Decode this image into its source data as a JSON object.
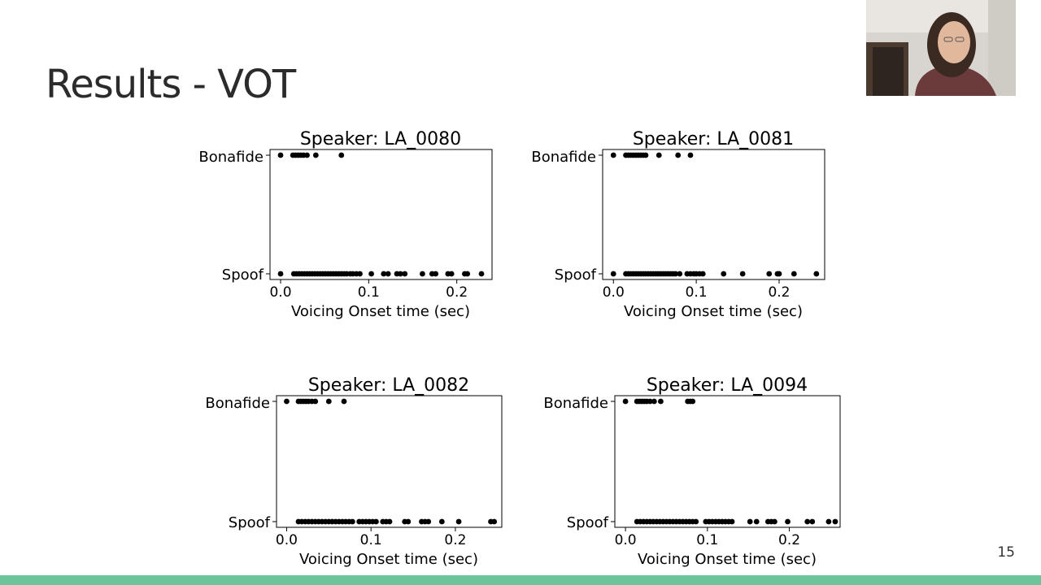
{
  "slide": {
    "title": "Results - VOT",
    "page_number": "15"
  },
  "colors": {
    "accent_bar": "#6cc49a",
    "points": "#000000"
  },
  "chart_data": [
    {
      "type": "scatter",
      "title": "Speaker: LA_0080",
      "xlabel": "Voicing Onset time (sec)",
      "ylabel": "",
      "categories": [
        "Spoof",
        "Bonafide"
      ],
      "xlim": [
        -0.012,
        0.24
      ],
      "xticks": [
        "0.0",
        "0.1",
        "0.2"
      ],
      "tick_values": [
        0,
        0.1,
        0.2
      ],
      "series": [
        {
          "category": "Bonafide",
          "values": [
            0.0,
            0.014,
            0.017,
            0.02,
            0.023,
            0.026,
            0.03,
            0.04,
            0.069
          ]
        },
        {
          "category": "Spoof",
          "values": [
            0.0,
            0.015,
            0.018,
            0.021,
            0.024,
            0.027,
            0.03,
            0.033,
            0.036,
            0.039,
            0.042,
            0.045,
            0.048,
            0.051,
            0.054,
            0.057,
            0.06,
            0.063,
            0.066,
            0.069,
            0.072,
            0.075,
            0.079,
            0.082,
            0.086,
            0.09,
            0.103,
            0.117,
            0.122,
            0.132,
            0.136,
            0.141,
            0.161,
            0.172,
            0.176,
            0.19,
            0.194,
            0.209,
            0.212,
            0.228
          ]
        }
      ]
    },
    {
      "type": "scatter",
      "title": "Speaker: LA_0081",
      "xlabel": "Voicing Onset time (sec)",
      "ylabel": "",
      "categories": [
        "Spoof",
        "Bonafide"
      ],
      "xlim": [
        -0.013,
        0.255
      ],
      "xticks": [
        "0.0",
        "0.1",
        "0.2"
      ],
      "tick_values": [
        0,
        0.1,
        0.2
      ],
      "series": [
        {
          "category": "Bonafide",
          "values": [
            0.0,
            0.015,
            0.018,
            0.021,
            0.024,
            0.027,
            0.03,
            0.033,
            0.036,
            0.039,
            0.055,
            0.078,
            0.093
          ]
        },
        {
          "category": "Spoof",
          "values": [
            0.0,
            0.015,
            0.018,
            0.021,
            0.024,
            0.027,
            0.03,
            0.033,
            0.036,
            0.039,
            0.042,
            0.045,
            0.048,
            0.051,
            0.054,
            0.057,
            0.06,
            0.063,
            0.066,
            0.069,
            0.072,
            0.075,
            0.08,
            0.089,
            0.093,
            0.097,
            0.1,
            0.104,
            0.108,
            0.133,
            0.156,
            0.188,
            0.198,
            0.2,
            0.218,
            0.245
          ]
        }
      ]
    },
    {
      "type": "scatter",
      "title": "Speaker: LA_0082",
      "xlabel": "Voicing Onset time (sec)",
      "ylabel": "",
      "categories": [
        "Spoof",
        "Bonafide"
      ],
      "xlim": [
        -0.012,
        0.255
      ],
      "xticks": [
        "0.0",
        "0.1",
        "0.2"
      ],
      "tick_values": [
        0,
        0.1,
        0.2
      ],
      "series": [
        {
          "category": "Bonafide",
          "values": [
            0.0,
            0.014,
            0.017,
            0.02,
            0.023,
            0.026,
            0.03,
            0.034,
            0.05,
            0.068
          ]
        },
        {
          "category": "Spoof",
          "values": [
            0.014,
            0.018,
            0.022,
            0.026,
            0.03,
            0.034,
            0.038,
            0.042,
            0.046,
            0.05,
            0.054,
            0.058,
            0.062,
            0.066,
            0.07,
            0.074,
            0.078,
            0.086,
            0.09,
            0.094,
            0.098,
            0.102,
            0.106,
            0.114,
            0.118,
            0.122,
            0.14,
            0.144,
            0.16,
            0.164,
            0.168,
            0.184,
            0.204,
            0.242,
            0.246
          ]
        }
      ]
    },
    {
      "type": "scatter",
      "title": "Speaker: LA_0094",
      "xlabel": "Voicing Onset time (sec)",
      "ylabel": "",
      "categories": [
        "Spoof",
        "Bonafide"
      ],
      "xlim": [
        -0.013,
        0.262
      ],
      "xticks": [
        "0.0",
        "0.1",
        "0.2"
      ],
      "tick_values": [
        0,
        0.1,
        0.2
      ],
      "series": [
        {
          "category": "Bonafide",
          "values": [
            0.0,
            0.014,
            0.017,
            0.02,
            0.023,
            0.026,
            0.03,
            0.035,
            0.043,
            0.076,
            0.079,
            0.082
          ]
        },
        {
          "category": "Spoof",
          "values": [
            0.014,
            0.018,
            0.022,
            0.026,
            0.03,
            0.034,
            0.038,
            0.042,
            0.046,
            0.05,
            0.054,
            0.058,
            0.062,
            0.066,
            0.07,
            0.074,
            0.078,
            0.082,
            0.086,
            0.098,
            0.102,
            0.106,
            0.11,
            0.114,
            0.118,
            0.122,
            0.126,
            0.13,
            0.152,
            0.16,
            0.174,
            0.178,
            0.182,
            0.198,
            0.222,
            0.228,
            0.248,
            0.256
          ]
        }
      ]
    }
  ]
}
